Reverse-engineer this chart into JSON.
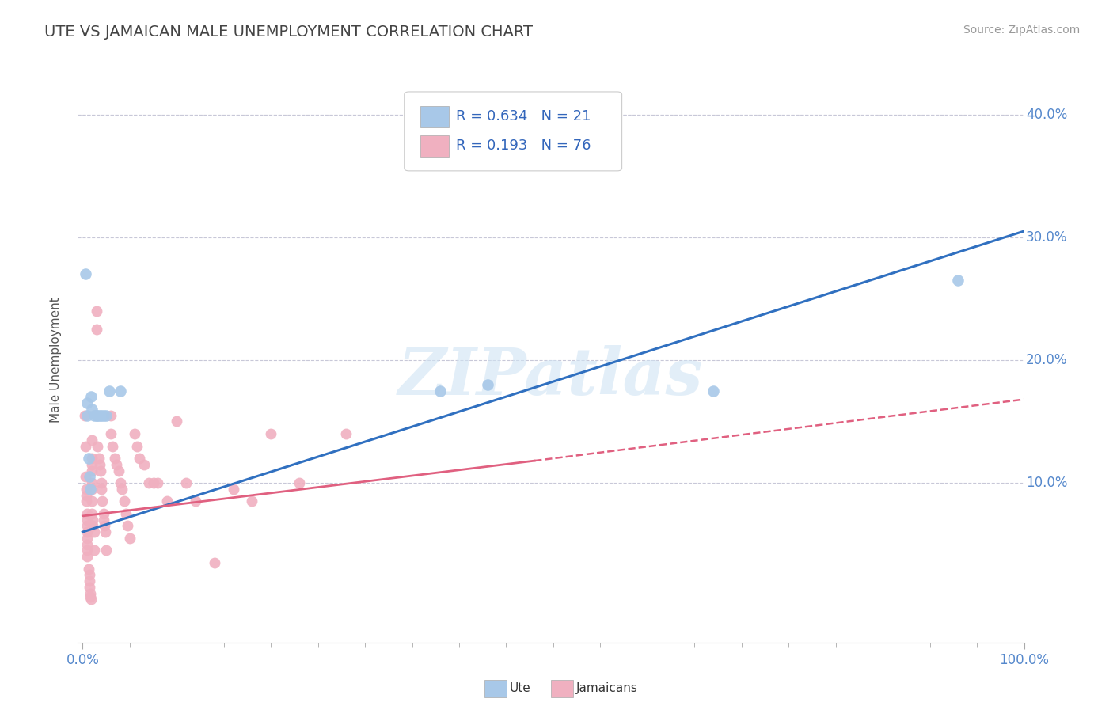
{
  "title": "UTE VS JAMAICAN MALE UNEMPLOYMENT CORRELATION CHART",
  "source_text": "Source: ZipAtlas.com",
  "ylabel": "Male Unemployment",
  "xlim": [
    -0.005,
    1.0
  ],
  "ylim": [
    -0.03,
    0.43
  ],
  "xticks": [
    0.0,
    1.0
  ],
  "xticklabels": [
    "0.0%",
    "100.0%"
  ],
  "yticks": [
    0.1,
    0.2,
    0.3,
    0.4
  ],
  "yticklabels": [
    "10.0%",
    "20.0%",
    "30.0%",
    "40.0%"
  ],
  "bg_color": "#ffffff",
  "grid_color": "#c8c8d8",
  "ute_color": "#a8c8e8",
  "jamaican_color": "#f0b0c0",
  "ute_line_color": "#3070c0",
  "jamaican_line_color": "#e06080",
  "legend_R_ute": "0.634",
  "legend_N_ute": "21",
  "legend_R_jamaican": "0.193",
  "legend_N_jamaican": "76",
  "ute_line": [
    [
      0.0,
      0.06
    ],
    [
      1.0,
      0.305
    ]
  ],
  "jamaican_line_solid": [
    [
      0.0,
      0.073
    ],
    [
      0.48,
      0.118
    ]
  ],
  "jamaican_line_dash": [
    [
      0.48,
      0.118
    ],
    [
      1.0,
      0.168
    ]
  ],
  "ute_points": [
    [
      0.003,
      0.27
    ],
    [
      0.005,
      0.165
    ],
    [
      0.005,
      0.155
    ],
    [
      0.006,
      0.12
    ],
    [
      0.007,
      0.105
    ],
    [
      0.008,
      0.095
    ],
    [
      0.009,
      0.17
    ],
    [
      0.01,
      0.16
    ],
    [
      0.012,
      0.155
    ],
    [
      0.015,
      0.155
    ],
    [
      0.016,
      0.155
    ],
    [
      0.018,
      0.155
    ],
    [
      0.02,
      0.155
    ],
    [
      0.022,
      0.155
    ],
    [
      0.025,
      0.155
    ],
    [
      0.028,
      0.175
    ],
    [
      0.04,
      0.175
    ],
    [
      0.38,
      0.175
    ],
    [
      0.43,
      0.18
    ],
    [
      0.67,
      0.175
    ],
    [
      0.93,
      0.265
    ]
  ],
  "jamaican_points": [
    [
      0.002,
      0.155
    ],
    [
      0.003,
      0.13
    ],
    [
      0.003,
      0.105
    ],
    [
      0.004,
      0.095
    ],
    [
      0.004,
      0.09
    ],
    [
      0.004,
      0.085
    ],
    [
      0.005,
      0.075
    ],
    [
      0.005,
      0.07
    ],
    [
      0.005,
      0.065
    ],
    [
      0.005,
      0.06
    ],
    [
      0.005,
      0.055
    ],
    [
      0.005,
      0.05
    ],
    [
      0.005,
      0.045
    ],
    [
      0.005,
      0.04
    ],
    [
      0.006,
      0.03
    ],
    [
      0.007,
      0.025
    ],
    [
      0.007,
      0.02
    ],
    [
      0.007,
      0.015
    ],
    [
      0.008,
      0.01
    ],
    [
      0.008,
      0.007
    ],
    [
      0.009,
      0.005
    ],
    [
      0.01,
      0.135
    ],
    [
      0.01,
      0.12
    ],
    [
      0.01,
      0.115
    ],
    [
      0.01,
      0.11
    ],
    [
      0.01,
      0.1
    ],
    [
      0.01,
      0.095
    ],
    [
      0.01,
      0.085
    ],
    [
      0.01,
      0.075
    ],
    [
      0.011,
      0.07
    ],
    [
      0.011,
      0.065
    ],
    [
      0.012,
      0.06
    ],
    [
      0.012,
      0.045
    ],
    [
      0.015,
      0.24
    ],
    [
      0.015,
      0.225
    ],
    [
      0.016,
      0.13
    ],
    [
      0.017,
      0.12
    ],
    [
      0.018,
      0.115
    ],
    [
      0.019,
      0.11
    ],
    [
      0.02,
      0.1
    ],
    [
      0.02,
      0.095
    ],
    [
      0.021,
      0.085
    ],
    [
      0.022,
      0.075
    ],
    [
      0.022,
      0.07
    ],
    [
      0.023,
      0.065
    ],
    [
      0.024,
      0.06
    ],
    [
      0.025,
      0.045
    ],
    [
      0.03,
      0.155
    ],
    [
      0.03,
      0.14
    ],
    [
      0.032,
      0.13
    ],
    [
      0.034,
      0.12
    ],
    [
      0.036,
      0.115
    ],
    [
      0.038,
      0.11
    ],
    [
      0.04,
      0.1
    ],
    [
      0.042,
      0.095
    ],
    [
      0.044,
      0.085
    ],
    [
      0.046,
      0.075
    ],
    [
      0.048,
      0.065
    ],
    [
      0.05,
      0.055
    ],
    [
      0.055,
      0.14
    ],
    [
      0.058,
      0.13
    ],
    [
      0.06,
      0.12
    ],
    [
      0.065,
      0.115
    ],
    [
      0.07,
      0.1
    ],
    [
      0.075,
      0.1
    ],
    [
      0.08,
      0.1
    ],
    [
      0.09,
      0.085
    ],
    [
      0.1,
      0.15
    ],
    [
      0.11,
      0.1
    ],
    [
      0.12,
      0.085
    ],
    [
      0.14,
      0.035
    ],
    [
      0.16,
      0.095
    ],
    [
      0.18,
      0.085
    ],
    [
      0.2,
      0.14
    ],
    [
      0.23,
      0.1
    ],
    [
      0.28,
      0.14
    ]
  ],
  "watermark_text": "ZIPatlas",
  "title_color": "#444444",
  "tick_color": "#5588cc",
  "tick_fontsize": 12,
  "title_fontsize": 14
}
